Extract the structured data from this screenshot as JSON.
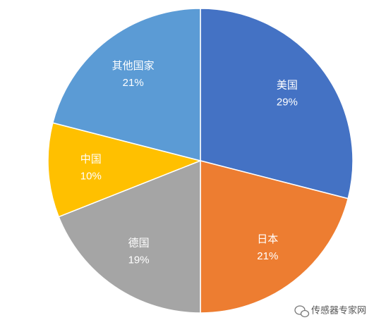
{
  "chart_data": {
    "type": "pie",
    "categories": [
      "美国",
      "日本",
      "德国",
      "中国",
      "其他国家"
    ],
    "values": [
      29,
      21,
      19,
      10,
      21
    ],
    "value_labels": [
      "29%",
      "21%",
      "19%",
      "10%",
      "21%"
    ],
    "colors": [
      "#4472c4",
      "#ed7d31",
      "#a5a5a5",
      "#ffc000",
      "#5b9bd5"
    ]
  },
  "watermark": "传感器专家网"
}
